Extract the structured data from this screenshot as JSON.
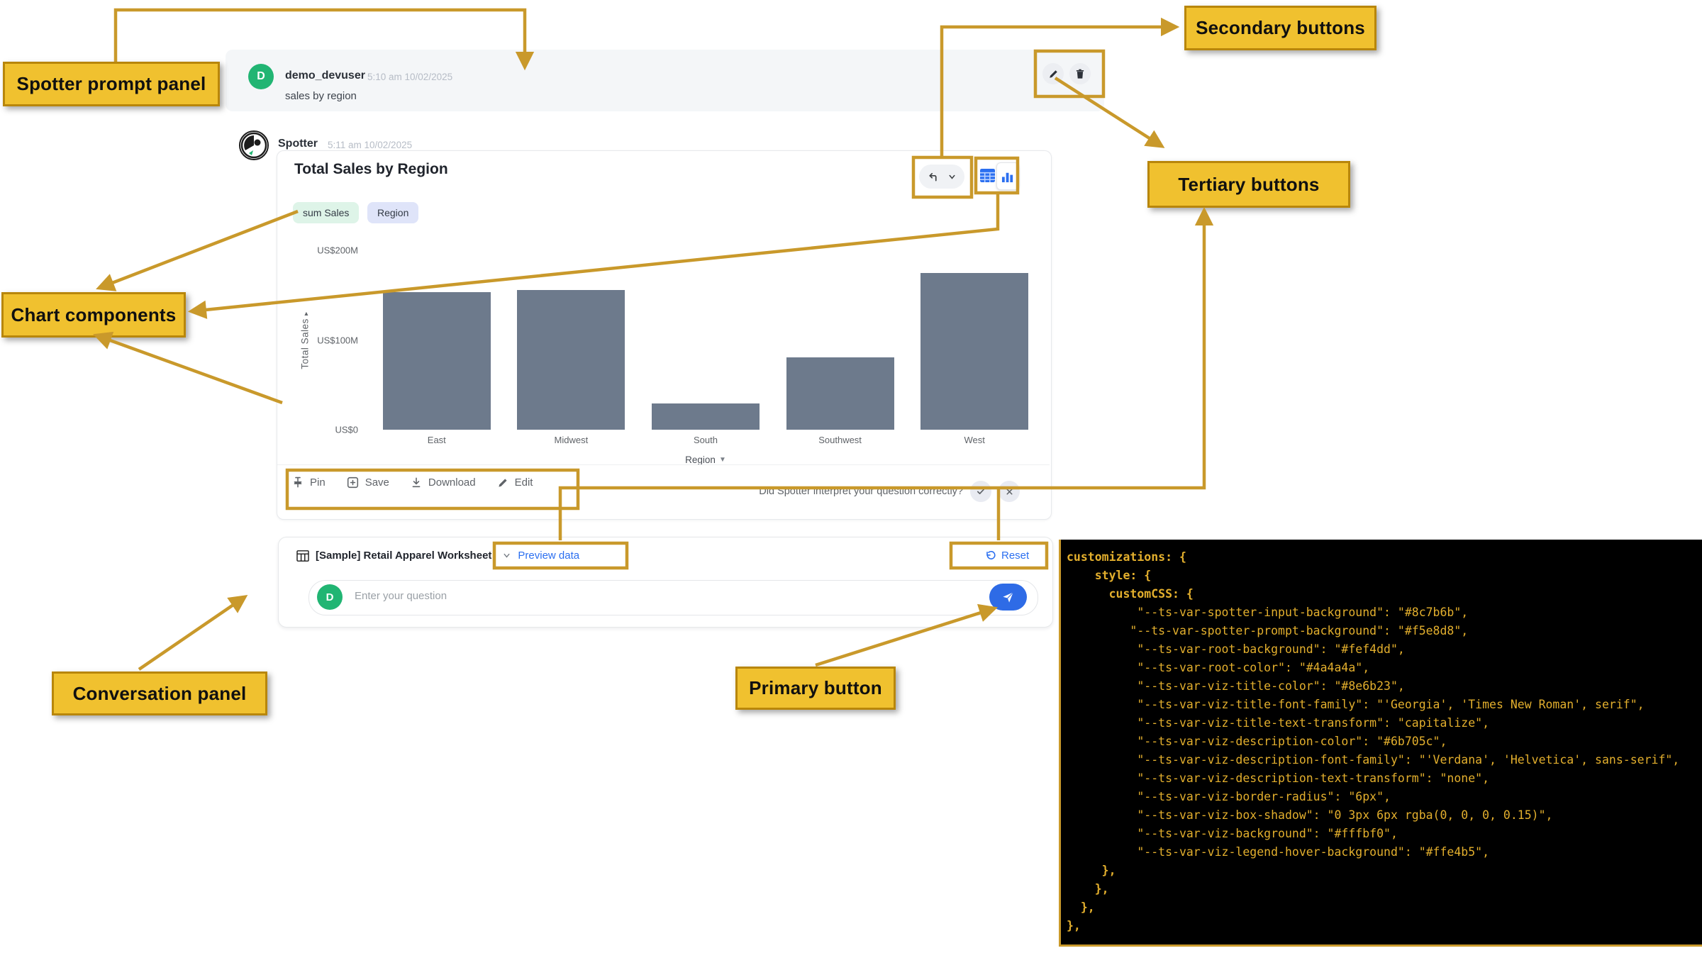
{
  "annotations": {
    "prompt_panel": "Spotter prompt panel",
    "secondary": "Secondary buttons",
    "tertiary": "Tertiary buttons",
    "chart_components": "Chart components",
    "conversation": "Conversation panel",
    "primary": "Primary button"
  },
  "prompt_panel": {
    "avatar_initial": "D",
    "user": "demo_devuser",
    "timestamp": "5:10 am 10/02/2025",
    "message": "sales by region"
  },
  "spotter": {
    "name": "Spotter",
    "timestamp": "5:11 am 10/02/2025"
  },
  "answer": {
    "title": "Total Sales by Region",
    "tokens": [
      {
        "label": "sum Sales"
      },
      {
        "label": "Region"
      }
    ],
    "footer": {
      "pin": "Pin",
      "save": "Save",
      "download": "Download",
      "edit": "Edit",
      "feedback_question": "Did Spotter interpret your question correctly?"
    }
  },
  "chart_data": {
    "type": "bar",
    "title": "Total Sales by Region",
    "categories": [
      "East",
      "Midwest",
      "South",
      "Southwest",
      "West"
    ],
    "values": [
      153,
      156,
      29,
      81,
      175
    ],
    "unit": "US$ millions",
    "xlabel": "Region",
    "ylabel": "Total Sales",
    "ylim": [
      0,
      200
    ],
    "yticks": [
      {
        "label": "US$0",
        "value": 0
      },
      {
        "label": "US$100M",
        "value": 100
      },
      {
        "label": "US$200M",
        "value": 200
      }
    ],
    "grid": false,
    "legend": false,
    "bar_color": "#6d7a8c"
  },
  "conversation": {
    "worksheet": "[Sample] Retail Apparel Worksheet",
    "preview_link": "Preview data",
    "reset_label": "Reset",
    "input_placeholder": "Enter your question",
    "avatar_initial": "D"
  },
  "code": {
    "lines": [
      {
        "text": "customizations: {",
        "bold": true
      },
      {
        "text": "    style: {",
        "bold": true
      },
      {
        "text": "      customCSS: {",
        "bold": true
      },
      {
        "text": "          \"--ts-var-spotter-input-background\": \"#8c7b6b\",",
        "bold": false
      },
      {
        "text": "         \"--ts-var-spotter-prompt-background\": \"#f5e8d8\",",
        "bold": false
      },
      {
        "text": "          \"--ts-var-root-background\": \"#fef4dd\",",
        "bold": false
      },
      {
        "text": "          \"--ts-var-root-color\": \"#4a4a4a\",",
        "bold": false
      },
      {
        "text": "          \"--ts-var-viz-title-color\": \"#8e6b23\",",
        "bold": false
      },
      {
        "text": "          \"--ts-var-viz-title-font-family\": \"'Georgia', 'Times New Roman', serif\",",
        "bold": false
      },
      {
        "text": "          \"--ts-var-viz-title-text-transform\": \"capitalize\",",
        "bold": false
      },
      {
        "text": "          \"--ts-var-viz-description-color\": \"#6b705c\",",
        "bold": false
      },
      {
        "text": "          \"--ts-var-viz-description-font-family\": \"'Verdana', 'Helvetica', sans-serif\",",
        "bold": false
      },
      {
        "text": "          \"--ts-var-viz-description-text-transform\": \"none\",",
        "bold": false
      },
      {
        "text": "          \"--ts-var-viz-border-radius\": \"6px\",",
        "bold": false
      },
      {
        "text": "          \"--ts-var-viz-box-shadow\": \"0 3px 6px rgba(0, 0, 0, 0.15)\",",
        "bold": false
      },
      {
        "text": "          \"--ts-var-viz-background\": \"#fffbf0\",",
        "bold": false
      },
      {
        "text": "          \"--ts-var-viz-legend-hover-background\": \"#ffe4b5\",",
        "bold": false
      },
      {
        "text": "     },",
        "bold": true
      },
      {
        "text": "    },",
        "bold": true
      },
      {
        "text": "  },",
        "bold": true
      },
      {
        "text": "},",
        "bold": true
      }
    ]
  },
  "colors": {
    "annotation_gold": "#c9992b",
    "label_background": "#f0c12f",
    "label_border": "#b8860b",
    "avatar_green": "#21b573",
    "link_blue": "#2b6ff0",
    "send_blue": "#2e6be6",
    "bar_gray": "#6d7a8c",
    "prompt_row_bg": "#f4f6f8",
    "token_green_bg": "#def4e8",
    "token_purple_bg": "#dfe4f9",
    "code_text": "#e3af2d",
    "code_bg": "#000000"
  }
}
